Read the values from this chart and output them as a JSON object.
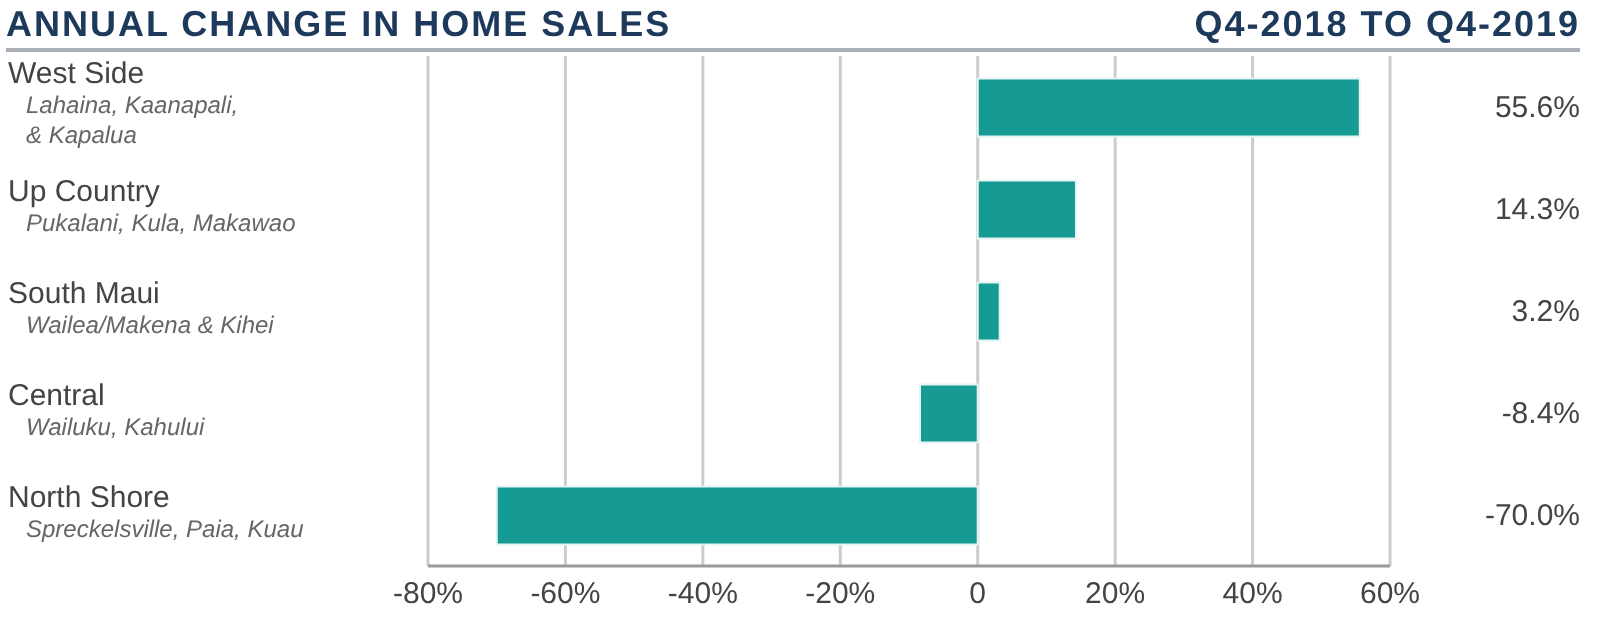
{
  "chart_data": {
    "type": "bar",
    "orientation": "horizontal",
    "title": "ANNUAL CHANGE IN HOME SALES",
    "subtitle": "Q4-2018 TO Q4-2019",
    "categories": [
      "West Side\nLahaina, Kaanapali,\n& Kapalua",
      "Up Country\nPukalani, Kula, Makawao",
      "South Maui\nWailea/Makena & Kihei",
      "Central\nWailuku, Kahului",
      "North Shore\nSpreckelsville, Paia, Kuau"
    ],
    "values": [
      55.6,
      14.3,
      3.2,
      -8.4,
      -70.0
    ],
    "value_labels": [
      "55.6%",
      "14.3%",
      "3.2%",
      "-8.4%",
      "-70.0%"
    ],
    "color": "#159a94",
    "xlim": [
      -80,
      60
    ],
    "xticks": [
      {
        "value": -80,
        "label": "-80%"
      },
      {
        "value": -60,
        "label": "-60%"
      },
      {
        "value": -40,
        "label": "-40%"
      },
      {
        "value": -20,
        "label": "-20%"
      },
      0,
      {
        "value": 20,
        "label": "20%"
      },
      {
        "value": 40,
        "label": "40%"
      },
      {
        "value": 60,
        "label": "60%"
      }
    ],
    "grid": "x",
    "legend": false
  }
}
